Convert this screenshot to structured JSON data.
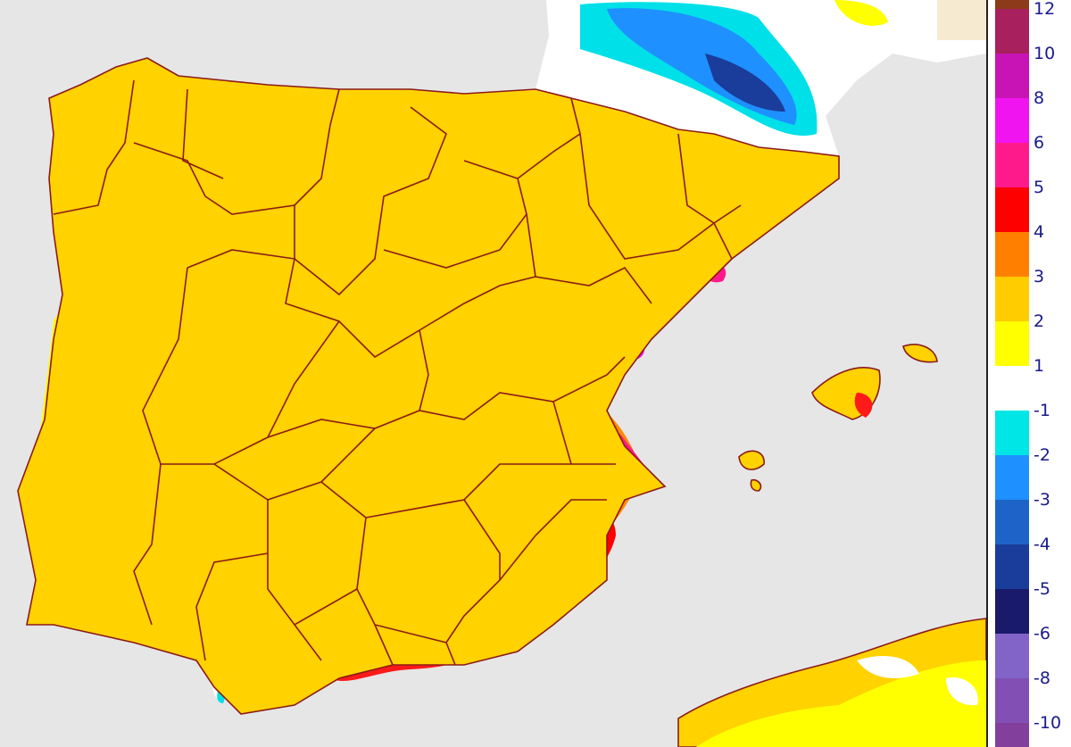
{
  "map": {
    "colors": {
      "sea": "#e6e6e6",
      "neutral": "#ffffff",
      "border": "#8b1a1a"
    }
  },
  "legend": {
    "labels": [
      "12",
      "10",
      "8",
      "6",
      "5",
      "4",
      "3",
      "2",
      "1",
      "-1",
      "-2",
      "-3",
      "-4",
      "-5",
      "-6",
      "-8",
      "-10"
    ],
    "bands": [
      {
        "range": ">12",
        "color": "#8b3a1a"
      },
      {
        "range": "10 to 12",
        "color": "#a8205e"
      },
      {
        "range": "8 to 10",
        "color": "#c814b4"
      },
      {
        "range": "6 to 8",
        "color": "#f014f0"
      },
      {
        "range": "5 to 6",
        "color": "#ff1a8c"
      },
      {
        "range": "4 to 5",
        "color": "#ff0000"
      },
      {
        "range": "3 to 4",
        "color": "#ff8000"
      },
      {
        "range": "2 to 3",
        "color": "#ffcc00"
      },
      {
        "range": "1 to 2",
        "color": "#ffff00"
      },
      {
        "range": "-1 to 1",
        "color": "#ffffff"
      },
      {
        "range": "-2 to -1",
        "color": "#00e6e6"
      },
      {
        "range": "-3 to -2",
        "color": "#1e90ff"
      },
      {
        "range": "-4 to -3",
        "color": "#1e64c8"
      },
      {
        "range": "-5 to -4",
        "color": "#1a3c9a"
      },
      {
        "range": "-6 to -5",
        "color": "#1a1a6a"
      },
      {
        "range": "-8 to -6",
        "color": "#8264c8"
      },
      {
        "range": "-10 to -8",
        "color": "#8250b4"
      },
      {
        "range": "<-10",
        "color": "#82409c"
      }
    ]
  }
}
